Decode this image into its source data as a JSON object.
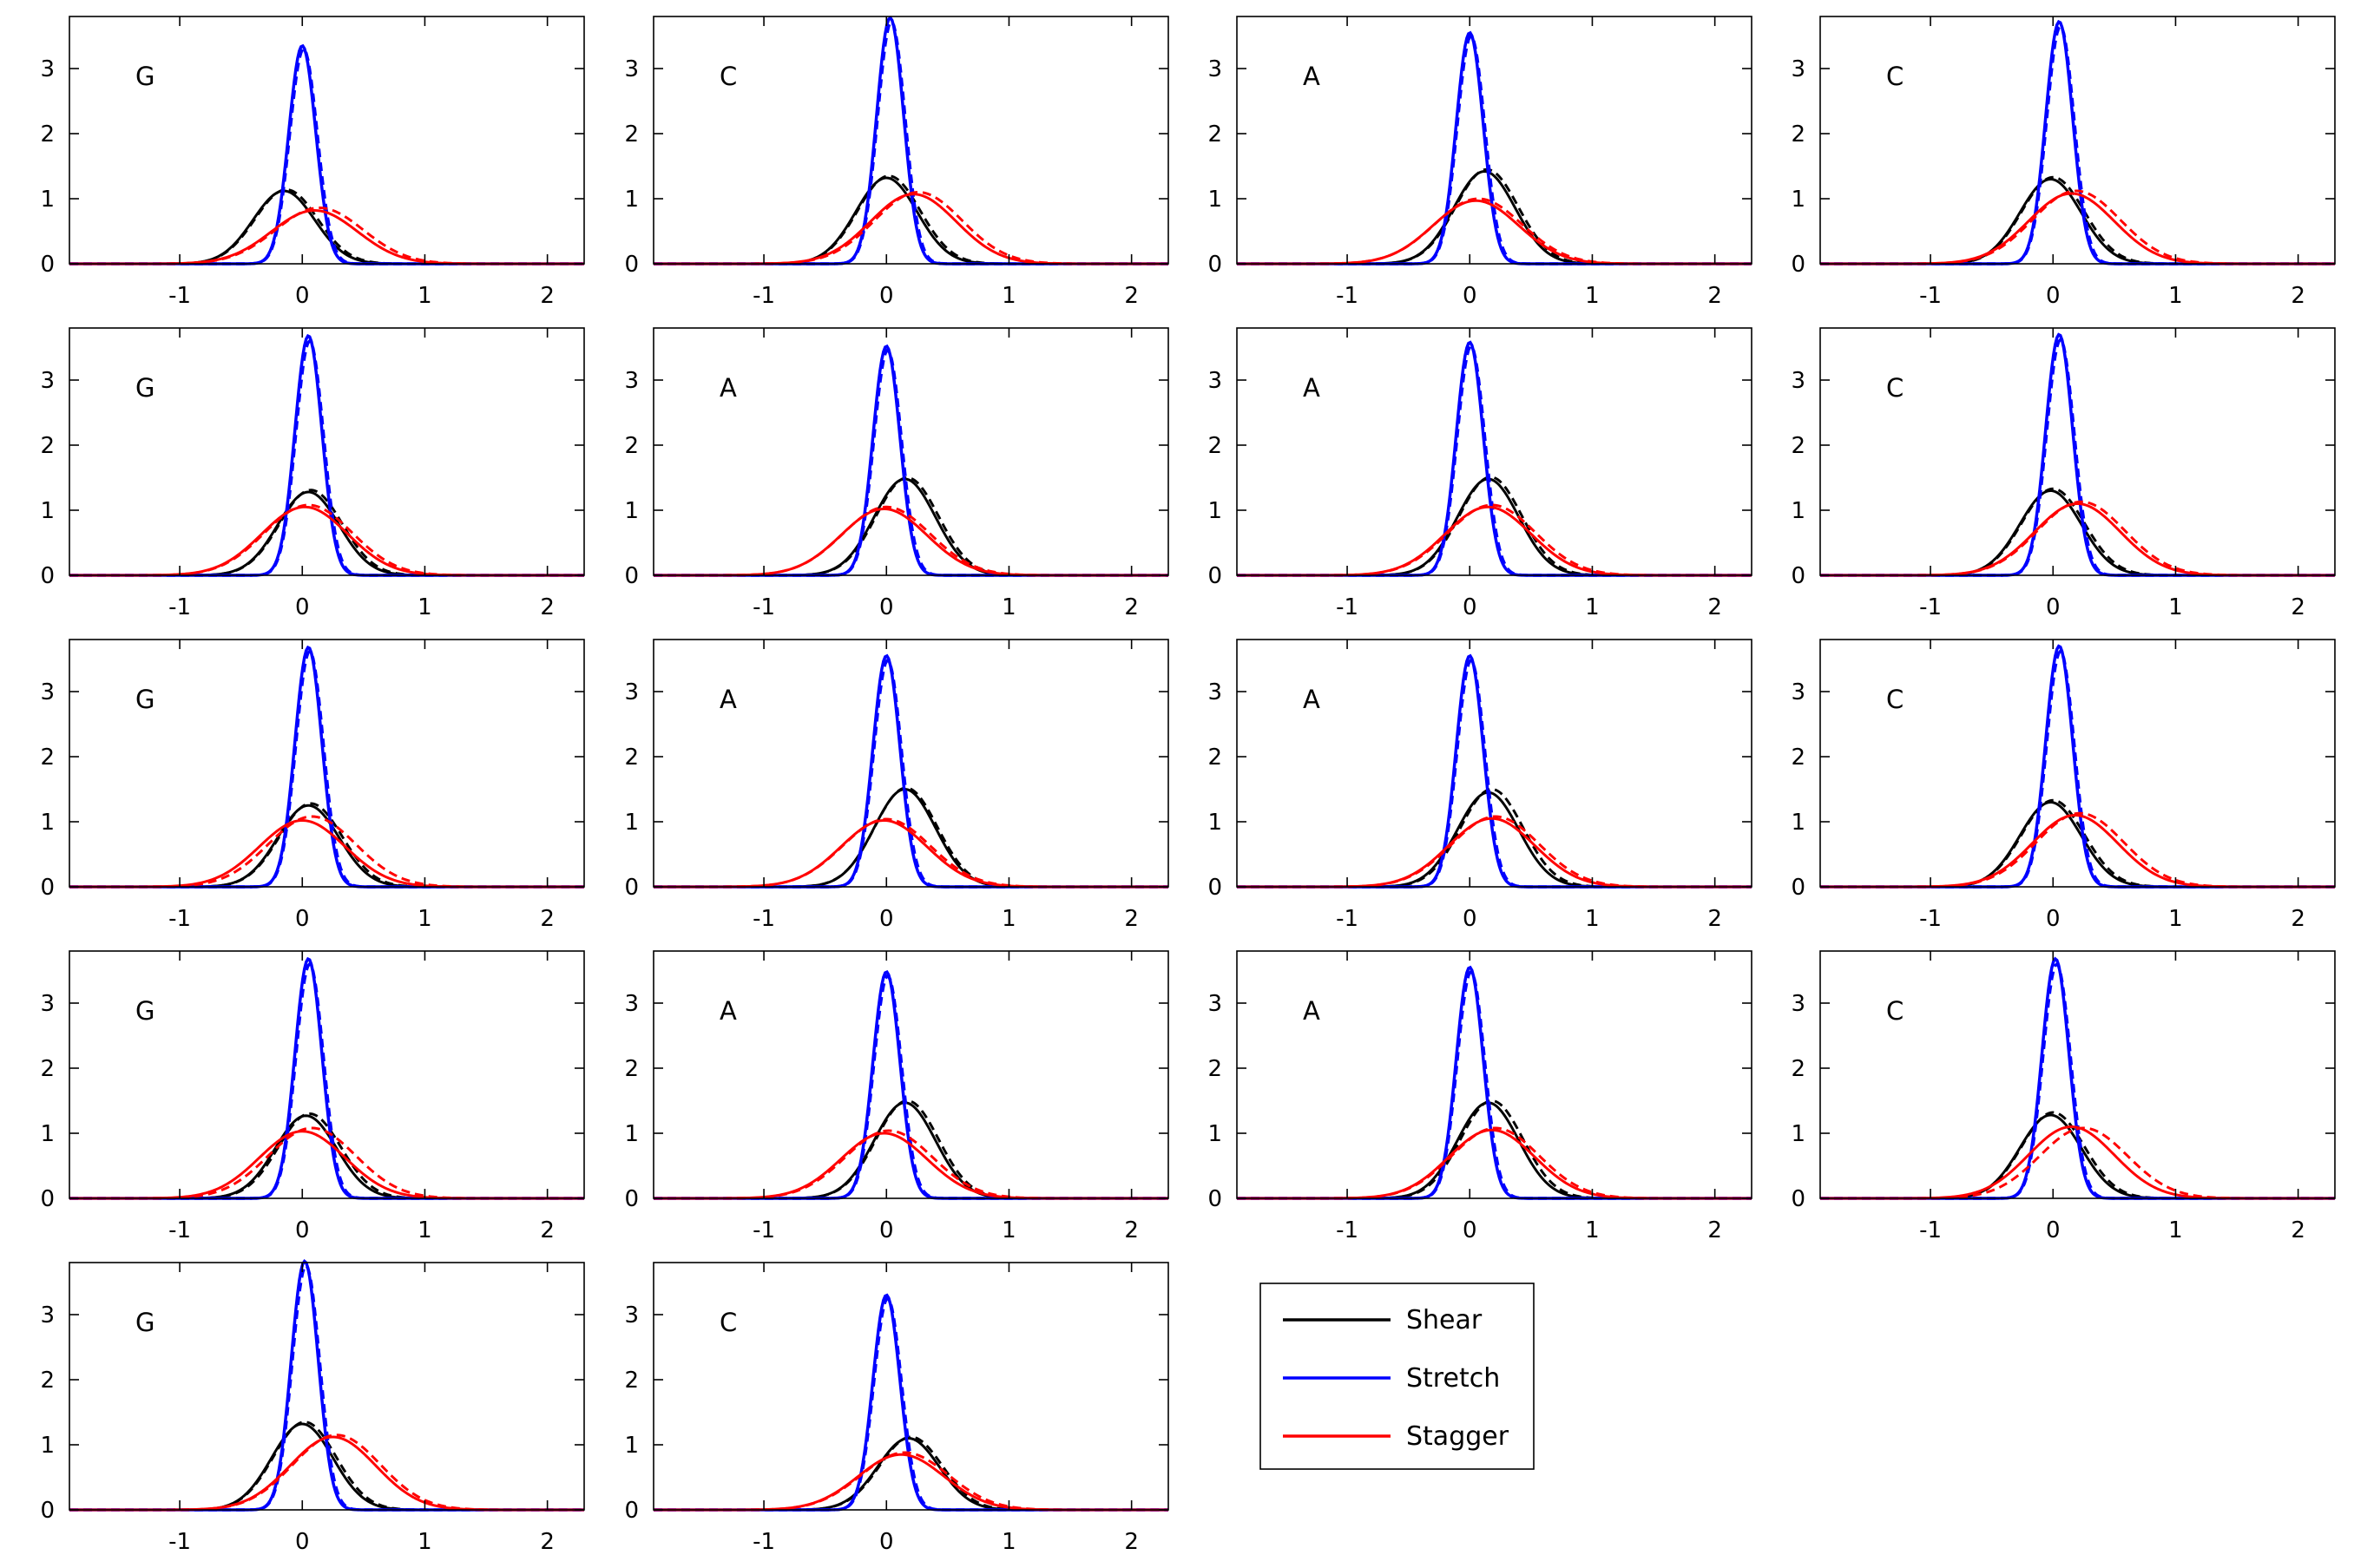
{
  "figure": {
    "rows": 5,
    "cols": 4
  },
  "axes": {
    "xlim": [
      -1.9,
      2.3
    ],
    "ylim": [
      0,
      3.8
    ],
    "xticks": [
      -1,
      0,
      1,
      2
    ],
    "yticks": [
      0,
      1,
      2,
      3
    ],
    "grid": false
  },
  "colors": {
    "Shear": "#000000",
    "Stretch": "#0000ff",
    "Stagger": "#ff0000"
  },
  "legend": {
    "placement": "row-5-column-3",
    "entries": [
      {
        "label": "Shear",
        "color": "#000000"
      },
      {
        "label": "Stretch",
        "color": "#0000ff"
      },
      {
        "label": "Stagger",
        "color": "#ff0000"
      }
    ]
  },
  "chart_data": [
    {
      "type": "line",
      "label": "G",
      "series": [
        {
          "name": "Shear",
          "peak": 1.12,
          "mean": -0.15,
          "peak_dashed": 1.14,
          "mean_dashed": -0.13
        },
        {
          "name": "Stretch",
          "peak": 3.35,
          "mean": 0.0,
          "peak_dashed": 3.3,
          "mean_dashed": 0.01
        },
        {
          "name": "Stagger",
          "peak": 0.82,
          "mean": 0.1,
          "peak_dashed": 0.86,
          "mean_dashed": 0.14
        }
      ]
    },
    {
      "type": "line",
      "label": "C",
      "series": [
        {
          "name": "Shear",
          "peak": 1.32,
          "mean": 0.0,
          "peak_dashed": 1.35,
          "mean_dashed": 0.02
        },
        {
          "name": "Stretch",
          "peak": 3.78,
          "mean": 0.03,
          "peak_dashed": 3.72,
          "mean_dashed": 0.04
        },
        {
          "name": "Stagger",
          "peak": 1.07,
          "mean": 0.22,
          "peak_dashed": 1.1,
          "mean_dashed": 0.26
        }
      ]
    },
    {
      "type": "line",
      "label": "A",
      "series": [
        {
          "name": "Shear",
          "peak": 1.42,
          "mean": 0.12,
          "peak_dashed": 1.45,
          "mean_dashed": 0.14
        },
        {
          "name": "Stretch",
          "peak": 3.55,
          "mean": 0.0,
          "peak_dashed": 3.5,
          "mean_dashed": 0.01
        },
        {
          "name": "Stagger",
          "peak": 0.97,
          "mean": 0.05,
          "peak_dashed": 1.0,
          "mean_dashed": 0.07
        }
      ]
    },
    {
      "type": "line",
      "label": "C",
      "series": [
        {
          "name": "Shear",
          "peak": 1.3,
          "mean": -0.02,
          "peak_dashed": 1.33,
          "mean_dashed": 0.0
        },
        {
          "name": "Stretch",
          "peak": 3.72,
          "mean": 0.05,
          "peak_dashed": 3.65,
          "mean_dashed": 0.06
        },
        {
          "name": "Stagger",
          "peak": 1.08,
          "mean": 0.15,
          "peak_dashed": 1.12,
          "mean_dashed": 0.19
        }
      ]
    },
    {
      "type": "line",
      "label": "G",
      "series": [
        {
          "name": "Shear",
          "peak": 1.28,
          "mean": 0.05,
          "peak_dashed": 1.31,
          "mean_dashed": 0.07
        },
        {
          "name": "Stretch",
          "peak": 3.68,
          "mean": 0.05,
          "peak_dashed": 3.6,
          "mean_dashed": 0.06
        },
        {
          "name": "Stagger",
          "peak": 1.05,
          "mean": 0.02,
          "peak_dashed": 1.08,
          "mean_dashed": 0.05
        }
      ]
    },
    {
      "type": "line",
      "label": "A",
      "series": [
        {
          "name": "Shear",
          "peak": 1.48,
          "mean": 0.15,
          "peak_dashed": 1.5,
          "mean_dashed": 0.17
        },
        {
          "name": "Stretch",
          "peak": 3.52,
          "mean": 0.0,
          "peak_dashed": 3.46,
          "mean_dashed": 0.01
        },
        {
          "name": "Stagger",
          "peak": 1.02,
          "mean": -0.02,
          "peak_dashed": 1.05,
          "mean_dashed": 0.0
        }
      ]
    },
    {
      "type": "line",
      "label": "A",
      "series": [
        {
          "name": "Shear",
          "peak": 1.48,
          "mean": 0.15,
          "peak_dashed": 1.51,
          "mean_dashed": 0.17
        },
        {
          "name": "Stretch",
          "peak": 3.58,
          "mean": 0.0,
          "peak_dashed": 3.52,
          "mean_dashed": 0.01
        },
        {
          "name": "Stagger",
          "peak": 1.05,
          "mean": 0.15,
          "peak_dashed": 1.08,
          "mean_dashed": 0.18
        }
      ]
    },
    {
      "type": "line",
      "label": "C",
      "series": [
        {
          "name": "Shear",
          "peak": 1.3,
          "mean": -0.02,
          "peak_dashed": 1.33,
          "mean_dashed": 0.0
        },
        {
          "name": "Stretch",
          "peak": 3.7,
          "mean": 0.05,
          "peak_dashed": 3.62,
          "mean_dashed": 0.06
        },
        {
          "name": "Stagger",
          "peak": 1.1,
          "mean": 0.2,
          "peak_dashed": 1.13,
          "mean_dashed": 0.23
        }
      ]
    },
    {
      "type": "line",
      "label": "G",
      "series": [
        {
          "name": "Shear",
          "peak": 1.25,
          "mean": 0.05,
          "peak_dashed": 1.28,
          "mean_dashed": 0.07
        },
        {
          "name": "Stretch",
          "peak": 3.68,
          "mean": 0.05,
          "peak_dashed": 3.62,
          "mean_dashed": 0.06
        },
        {
          "name": "Stagger",
          "peak": 1.02,
          "mean": 0.0,
          "peak_dashed": 1.08,
          "mean_dashed": 0.08
        }
      ]
    },
    {
      "type": "line",
      "label": "A",
      "series": [
        {
          "name": "Shear",
          "peak": 1.5,
          "mean": 0.15,
          "peak_dashed": 1.52,
          "mean_dashed": 0.16
        },
        {
          "name": "Stretch",
          "peak": 3.55,
          "mean": 0.0,
          "peak_dashed": 3.48,
          "mean_dashed": 0.01
        },
        {
          "name": "Stagger",
          "peak": 1.02,
          "mean": -0.02,
          "peak_dashed": 1.04,
          "mean_dashed": 0.0
        }
      ]
    },
    {
      "type": "line",
      "label": "A",
      "series": [
        {
          "name": "Shear",
          "peak": 1.45,
          "mean": 0.15,
          "peak_dashed": 1.5,
          "mean_dashed": 0.18
        },
        {
          "name": "Stretch",
          "peak": 3.55,
          "mean": 0.0,
          "peak_dashed": 3.48,
          "mean_dashed": 0.01
        },
        {
          "name": "Stagger",
          "peak": 1.05,
          "mean": 0.18,
          "peak_dashed": 1.08,
          "mean_dashed": 0.21
        }
      ]
    },
    {
      "type": "line",
      "label": "C",
      "series": [
        {
          "name": "Shear",
          "peak": 1.3,
          "mean": -0.02,
          "peak_dashed": 1.33,
          "mean_dashed": 0.0
        },
        {
          "name": "Stretch",
          "peak": 3.7,
          "mean": 0.05,
          "peak_dashed": 3.62,
          "mean_dashed": 0.06
        },
        {
          "name": "Stagger",
          "peak": 1.1,
          "mean": 0.18,
          "peak_dashed": 1.13,
          "mean_dashed": 0.22
        }
      ]
    },
    {
      "type": "line",
      "label": "G",
      "series": [
        {
          "name": "Shear",
          "peak": 1.27,
          "mean": 0.03,
          "peak_dashed": 1.3,
          "mean_dashed": 0.06
        },
        {
          "name": "Stretch",
          "peak": 3.68,
          "mean": 0.05,
          "peak_dashed": 3.6,
          "mean_dashed": 0.06
        },
        {
          "name": "Stagger",
          "peak": 1.03,
          "mean": 0.0,
          "peak_dashed": 1.08,
          "mean_dashed": 0.08
        }
      ]
    },
    {
      "type": "line",
      "label": "A",
      "series": [
        {
          "name": "Shear",
          "peak": 1.47,
          "mean": 0.15,
          "peak_dashed": 1.5,
          "mean_dashed": 0.17
        },
        {
          "name": "Stretch",
          "peak": 3.48,
          "mean": 0.0,
          "peak_dashed": 3.42,
          "mean_dashed": 0.01
        },
        {
          "name": "Stagger",
          "peak": 1.0,
          "mean": -0.02,
          "peak_dashed": 1.04,
          "mean_dashed": 0.02
        }
      ]
    },
    {
      "type": "line",
      "label": "A",
      "series": [
        {
          "name": "Shear",
          "peak": 1.47,
          "mean": 0.15,
          "peak_dashed": 1.5,
          "mean_dashed": 0.18
        },
        {
          "name": "Stretch",
          "peak": 3.55,
          "mean": 0.0,
          "peak_dashed": 3.48,
          "mean_dashed": 0.01
        },
        {
          "name": "Stagger",
          "peak": 1.05,
          "mean": 0.18,
          "peak_dashed": 1.08,
          "mean_dashed": 0.21
        }
      ]
    },
    {
      "type": "line",
      "label": "C",
      "series": [
        {
          "name": "Shear",
          "peak": 1.28,
          "mean": -0.02,
          "peak_dashed": 1.32,
          "mean_dashed": 0.0
        },
        {
          "name": "Stretch",
          "peak": 3.68,
          "mean": 0.02,
          "peak_dashed": 3.6,
          "mean_dashed": 0.03
        },
        {
          "name": "Stagger",
          "peak": 1.1,
          "mean": 0.15,
          "peak_dashed": 1.08,
          "mean_dashed": 0.25
        }
      ]
    },
    {
      "type": "line",
      "label": "G",
      "series": [
        {
          "name": "Shear",
          "peak": 1.32,
          "mean": 0.0,
          "peak_dashed": 1.35,
          "mean_dashed": 0.02
        },
        {
          "name": "Stretch",
          "peak": 3.82,
          "mean": 0.02,
          "peak_dashed": 3.75,
          "mean_dashed": 0.03
        },
        {
          "name": "Stagger",
          "peak": 1.12,
          "mean": 0.25,
          "peak_dashed": 1.15,
          "mean_dashed": 0.28
        }
      ]
    },
    {
      "type": "line",
      "label": "C",
      "series": [
        {
          "name": "Shear",
          "peak": 1.1,
          "mean": 0.18,
          "peak_dashed": 1.12,
          "mean_dashed": 0.2
        },
        {
          "name": "Stretch",
          "peak": 3.3,
          "mean": 0.0,
          "peak_dashed": 3.25,
          "mean_dashed": 0.01
        },
        {
          "name": "Stagger",
          "peak": 0.85,
          "mean": 0.12,
          "peak_dashed": 0.88,
          "mean_dashed": 0.15
        }
      ]
    }
  ]
}
